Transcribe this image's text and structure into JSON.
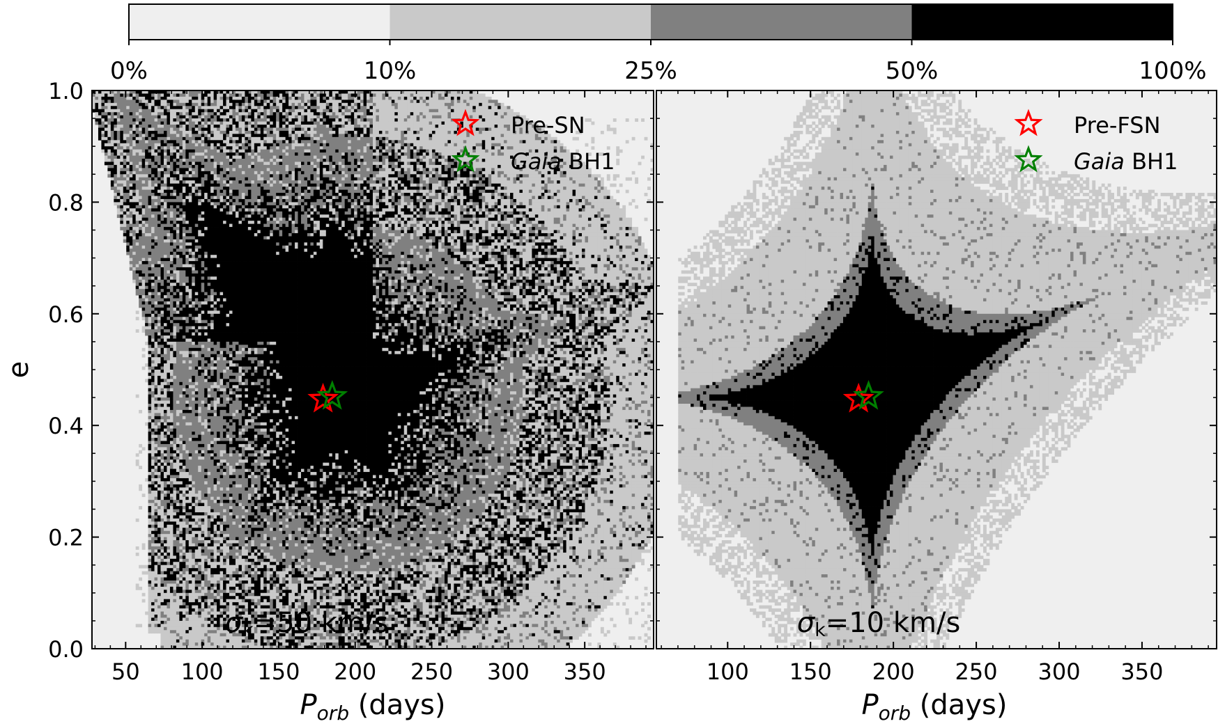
{
  "colorbar": {
    "levels": [
      "0%",
      "10%",
      "25%",
      "50%",
      "100%"
    ],
    "colors": [
      "#efefef",
      "#c9c9c9",
      "#808080",
      "#000000"
    ]
  },
  "chart_data": [
    {
      "type": "heatmap",
      "annotation_symbol": "σ",
      "annotation_subscript": "k",
      "annotation_value": "=50 km/s",
      "xlabel_var": "P",
      "xlabel_sub": "orb",
      "xlabel_unit": " (days)",
      "ylabel": "e",
      "xlim": [
        28,
        395
      ],
      "ylim": [
        0,
        1.0
      ],
      "xticks": [
        50,
        100,
        150,
        200,
        250,
        300,
        350
      ],
      "yticks": [
        "0.0",
        "0.2",
        "0.4",
        "0.6",
        "0.8",
        "1.0"
      ],
      "legend_position": "top-right",
      "legend": [
        {
          "label": "Pre-SN",
          "italic_prefix": "",
          "color": "#ff0000",
          "x": 179,
          "y": 0.447
        },
        {
          "label": " BH1",
          "italic_prefix": "Gaia",
          "color": "#008000",
          "x": 185,
          "y": 0.452
        }
      ]
    },
    {
      "type": "heatmap",
      "annotation_symbol": "σ",
      "annotation_subscript": "k",
      "annotation_value": "=10 km/s",
      "xlabel_var": "P",
      "xlabel_sub": "orb",
      "xlabel_unit": " (days)",
      "ylabel": "",
      "xlim": [
        57,
        395
      ],
      "ylim": [
        0,
        1.0
      ],
      "xticks": [
        100,
        150,
        200,
        250,
        300,
        350
      ],
      "yticks": [],
      "legend_position": "top-right",
      "legend": [
        {
          "label": "Pre-FSN",
          "italic_prefix": "",
          "color": "#ff0000",
          "x": 179,
          "y": 0.447
        },
        {
          "label": " BH1",
          "italic_prefix": "Gaia",
          "color": "#008000",
          "x": 185,
          "y": 0.452
        }
      ]
    }
  ]
}
